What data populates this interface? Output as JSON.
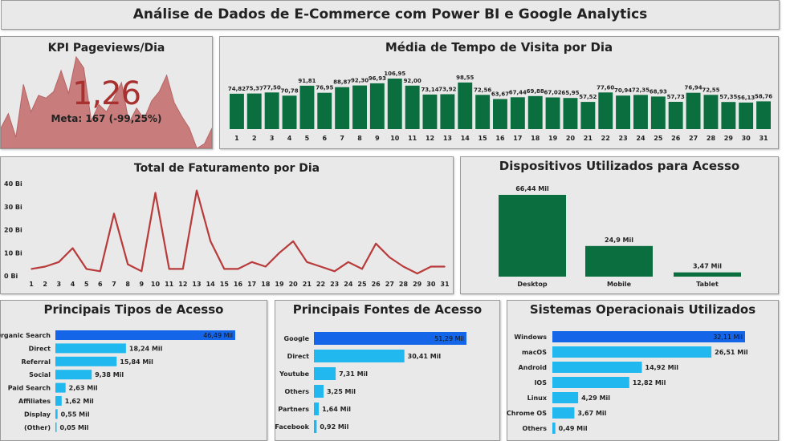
{
  "dashboard": {
    "title": "Análise de Dados de E-Commerce com Power BI e Google Analytics"
  },
  "kpi": {
    "title": "KPI Pageviews/Dia",
    "value": "1,26",
    "goal": "Meta: 167 (-99,25%)",
    "value_color": "#a8302f",
    "area_color": "#c97c7c",
    "area_values": [
      22,
      38,
      12,
      70,
      40,
      58,
      55,
      62,
      85,
      60,
      100,
      88,
      30,
      48,
      40,
      55,
      72,
      28,
      44,
      32,
      52,
      62,
      80,
      50,
      35,
      22,
      0,
      5,
      22
    ]
  },
  "visit_time": {
    "title": "Média de Tempo de Visita por Dia",
    "bar_color": "#0b6e3f",
    "chart_data": {
      "type": "bar",
      "categories": [
        "1",
        "2",
        "3",
        "4",
        "5",
        "6",
        "7",
        "8",
        "9",
        "10",
        "11",
        "12",
        "13",
        "14",
        "15",
        "16",
        "17",
        "18",
        "19",
        "20",
        "21",
        "22",
        "23",
        "24",
        "25",
        "26",
        "27",
        "28",
        "29",
        "30",
        "31"
      ],
      "values": [
        74.82,
        75.37,
        77.5,
        70.78,
        91.81,
        76.95,
        88.87,
        92.3,
        96.93,
        106.95,
        92.0,
        73.14,
        73.92,
        98.55,
        72.56,
        63.67,
        67.44,
        69.88,
        67.02,
        65.95,
        57.52,
        77.6,
        70.94,
        72.35,
        68.93,
        57.73,
        76.94,
        72.55,
        57.35,
        56.13,
        58.76
      ],
      "labels": [
        "74,82",
        "75,37",
        "77,50",
        "70,78",
        "91,81",
        "76,95",
        "88,87",
        "92,30",
        "96,93",
        "106,95",
        "92,00",
        "73,14",
        "73,92",
        "98,55",
        "72,56",
        "63,67",
        "67,44",
        "69,88",
        "67,02",
        "65,95",
        "57,52",
        "77,60",
        "70,94",
        "72,35",
        "68,93",
        "57,73",
        "76,94",
        "72,55",
        "57,35",
        "56,13",
        "58,76"
      ]
    }
  },
  "revenue": {
    "title": "Total de Faturamento por Dia",
    "line_color": "#b83a3a",
    "chart_data": {
      "type": "line",
      "x": [
        "1",
        "2",
        "3",
        "4",
        "5",
        "6",
        "7",
        "8",
        "9",
        "10",
        "11",
        "12",
        "13",
        "14",
        "15",
        "16",
        "17",
        "18",
        "19",
        "20",
        "21",
        "22",
        "23",
        "24",
        "25",
        "26",
        "27",
        "28",
        "29",
        "30",
        "31"
      ],
      "values": [
        3,
        4,
        6,
        12,
        3,
        2,
        27,
        5,
        2,
        36,
        3,
        3,
        37,
        15,
        3,
        3,
        6,
        4,
        10,
        15,
        6,
        4,
        2,
        6,
        3,
        14,
        8,
        4,
        1,
        4,
        4
      ],
      "ylim": [
        0,
        40
      ],
      "yticks": [
        "0 Bi",
        "10 Bi",
        "20 Bi",
        "30 Bi",
        "40 Bi"
      ],
      "ytick_values": [
        0,
        10,
        20,
        30,
        40
      ]
    }
  },
  "devices": {
    "title": "Dispositivos Utilizados para Acesso",
    "bar_color": "#0b6e3f",
    "chart_data": {
      "type": "bar",
      "categories": [
        "Desktop",
        "Mobile",
        "Tablet"
      ],
      "values": [
        66.44,
        24.9,
        3.47
      ],
      "labels": [
        "66,44 Mil",
        "24,9 Mil",
        "3,47 Mil"
      ]
    }
  },
  "access_types": {
    "title": "Principais Tipos de Acesso",
    "colors": {
      "top": "#1565e8",
      "rest": "#21b8f0"
    },
    "chart_data": {
      "type": "bar",
      "categories": [
        "Organic Search",
        "Direct",
        "Referral",
        "Social",
        "Paid Search",
        "Affiliates",
        "Display",
        "(Other)"
      ],
      "values": [
        46.49,
        18.24,
        15.84,
        9.38,
        2.63,
        1.62,
        0.55,
        0.05
      ],
      "labels": [
        "46,49 Mil",
        "18,24 Mil",
        "15,84 Mil",
        "9,38 Mil",
        "2,63 Mil",
        "1,62 Mil",
        "0,55 Mil",
        "0,05 Mil"
      ]
    }
  },
  "sources": {
    "title": "Principais Fontes de Acesso",
    "colors": {
      "top": "#1565e8",
      "rest": "#21b8f0"
    },
    "chart_data": {
      "type": "bar",
      "categories": [
        "Google",
        "Direct",
        "Youtube",
        "Others",
        "Partners",
        "Facebook"
      ],
      "values": [
        51.29,
        30.41,
        7.31,
        3.25,
        1.64,
        0.92
      ],
      "labels": [
        "51,29 Mil",
        "30,41 Mil",
        "7,31 Mil",
        "3,25 Mil",
        "1,64 Mil",
        "0,92 Mil"
      ]
    }
  },
  "os": {
    "title": "Sistemas Operacionais Utilizados",
    "colors": {
      "top": "#1565e8",
      "rest": "#21b8f0"
    },
    "chart_data": {
      "type": "bar",
      "categories": [
        "Windows",
        "macOS",
        "Android",
        "IOS",
        "Linux",
        "Chrome OS",
        "Others"
      ],
      "values": [
        32.11,
        26.51,
        14.92,
        12.82,
        4.29,
        3.67,
        0.49
      ],
      "labels": [
        "32,11 Mil",
        "26,51 Mil",
        "14,92 Mil",
        "12,82 Mil",
        "4,29 Mil",
        "3,67 Mil",
        "0,49 Mil"
      ]
    }
  }
}
